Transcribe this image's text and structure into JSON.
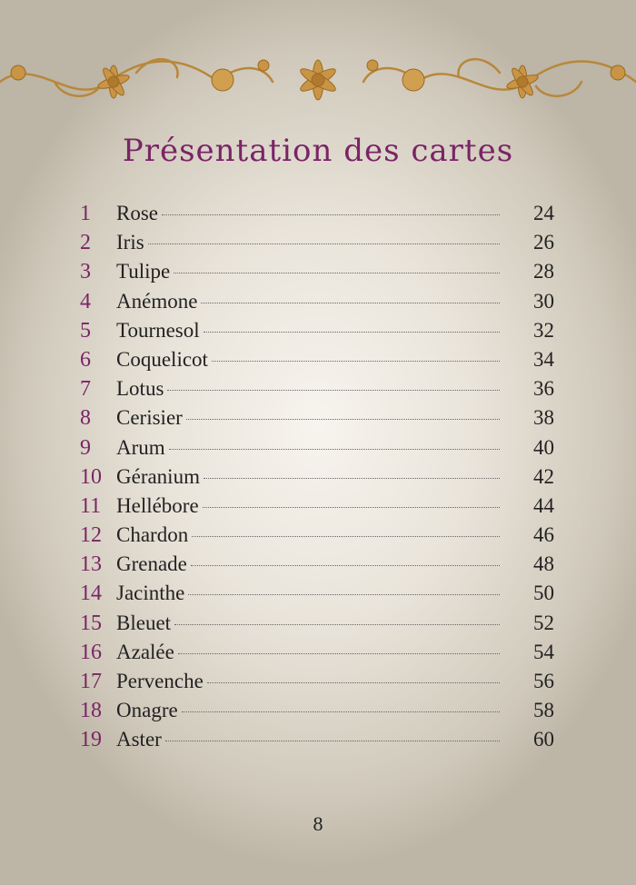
{
  "title": "Présentation des cartes",
  "entries": [
    {
      "number": 1,
      "name": "Rose",
      "page": 24
    },
    {
      "number": 2,
      "name": "Iris",
      "page": 26
    },
    {
      "number": 3,
      "name": "Tulipe",
      "page": 28
    },
    {
      "number": 4,
      "name": "Anémone",
      "page": 30
    },
    {
      "number": 5,
      "name": "Tournesol",
      "page": 32
    },
    {
      "number": 6,
      "name": "Coquelicot",
      "page": 34
    },
    {
      "number": 7,
      "name": "Lotus",
      "page": 36
    },
    {
      "number": 8,
      "name": "Cerisier",
      "page": 38
    },
    {
      "number": 9,
      "name": "Arum",
      "page": 40
    },
    {
      "number": 10,
      "name": "Géranium",
      "page": 42
    },
    {
      "number": 11,
      "name": "Hellébore",
      "page": 44
    },
    {
      "number": 12,
      "name": "Chardon",
      "page": 46
    },
    {
      "number": 13,
      "name": "Grenade",
      "page": 48
    },
    {
      "number": 14,
      "name": "Jacinthe",
      "page": 50
    },
    {
      "number": 15,
      "name": "Bleuet",
      "page": 52
    },
    {
      "number": 16,
      "name": "Azalée",
      "page": 54
    },
    {
      "number": 17,
      "name": "Pervenche",
      "page": 56
    },
    {
      "number": 18,
      "name": "Onagre",
      "page": 58
    },
    {
      "number": 19,
      "name": "Aster",
      "page": 60
    }
  ],
  "folio": 8
}
